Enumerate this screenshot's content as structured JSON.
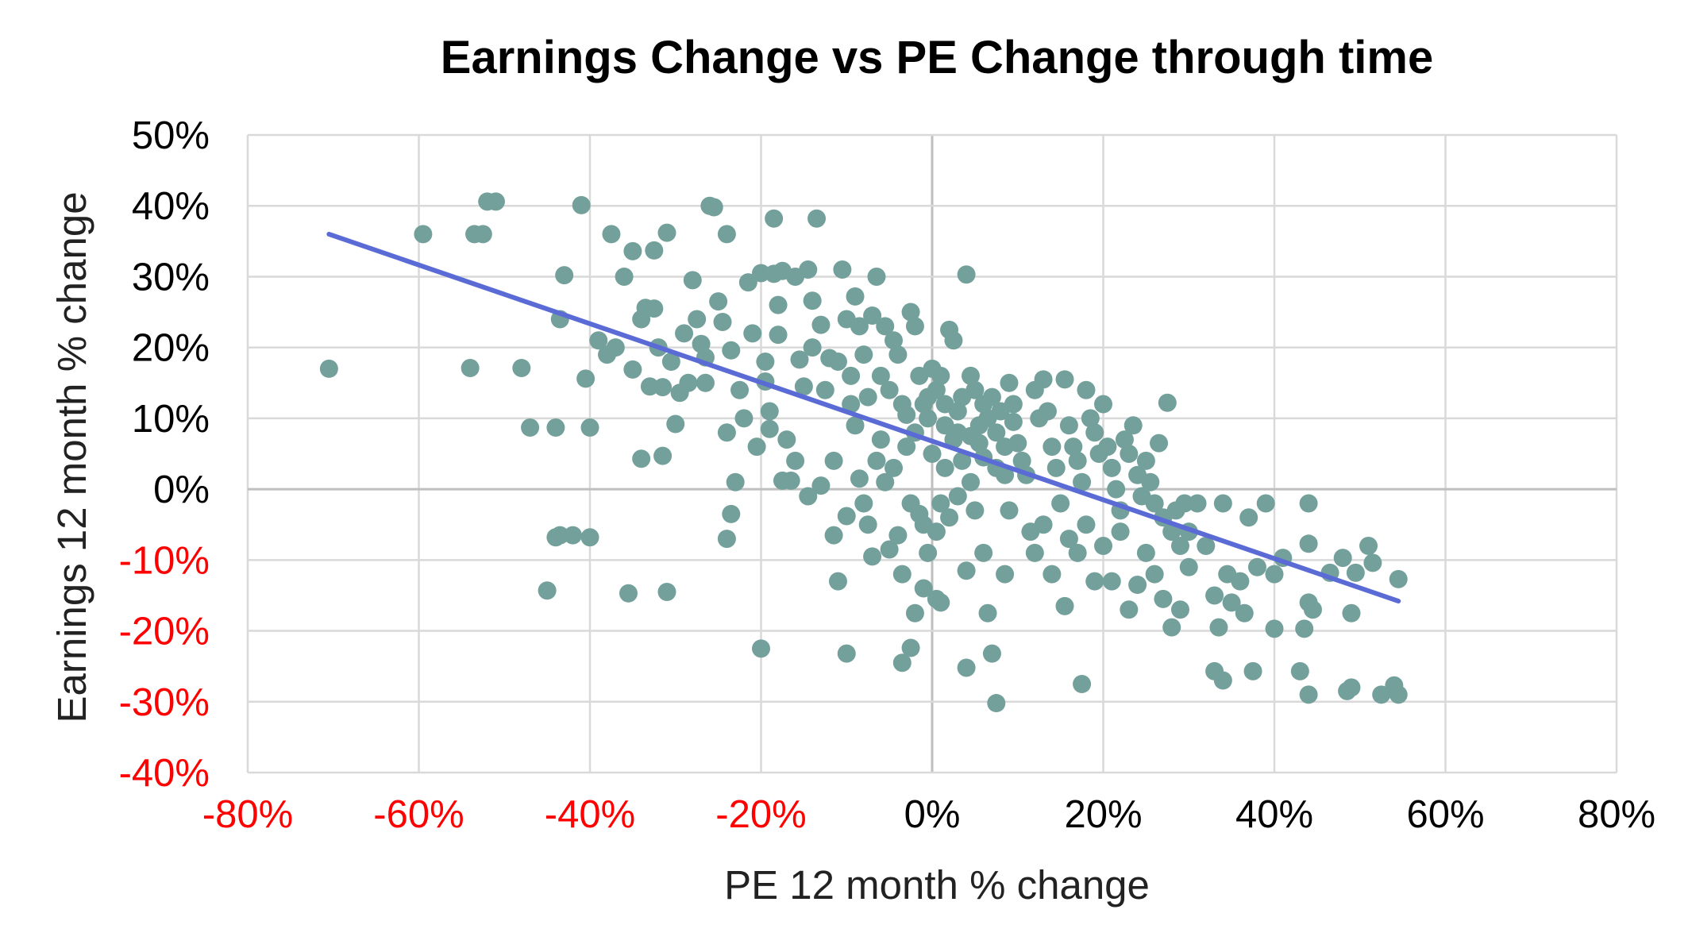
{
  "chart_data": {
    "type": "scatter",
    "title": "Earnings Change vs PE Change through time",
    "xlabel": "PE 12 month % change",
    "ylabel": "Earnings 12 month % change",
    "xlim": [
      -0.8,
      0.8
    ],
    "ylim": [
      -0.4,
      0.5
    ],
    "x_ticks": [
      -0.8,
      -0.6,
      -0.4,
      -0.2,
      0,
      0.2,
      0.4,
      0.6,
      0.8
    ],
    "y_ticks": [
      -0.4,
      -0.3,
      -0.2,
      -0.1,
      0,
      0.1,
      0.2,
      0.3,
      0.4,
      0.5
    ],
    "x_tick_labels": [
      "-80%",
      "-60%",
      "-40%",
      "-20%",
      "0%",
      "20%",
      "40%",
      "60%",
      "80%"
    ],
    "y_tick_labels": [
      "-40%",
      "-30%",
      "-20%",
      "-10%",
      "0%",
      "10%",
      "20%",
      "30%",
      "40%",
      "50%"
    ],
    "negative_tick_color": "#ff0000",
    "positive_tick_color": "#000000",
    "point_color": "#74a09c",
    "trend_color": "#5b6bd6",
    "grid": true,
    "legend": "none",
    "trendline": {
      "x": [
        -0.705,
        0.545
      ],
      "y": [
        0.36,
        -0.158
      ]
    },
    "series": [
      {
        "points": [
          [
            -0.705,
            0.17
          ],
          [
            -0.595,
            0.36
          ],
          [
            -0.54,
            0.171
          ],
          [
            -0.535,
            0.36
          ],
          [
            -0.525,
            0.36
          ],
          [
            -0.52,
            0.406
          ],
          [
            -0.51,
            0.406
          ],
          [
            -0.48,
            0.171
          ],
          [
            -0.47,
            0.087
          ],
          [
            -0.44,
            0.087
          ],
          [
            -0.44,
            -0.068
          ],
          [
            -0.45,
            -0.143
          ],
          [
            -0.435,
            -0.065
          ],
          [
            -0.435,
            0.24
          ],
          [
            -0.43,
            0.302
          ],
          [
            -0.42,
            -0.065
          ],
          [
            -0.405,
            0.156
          ],
          [
            -0.41,
            0.401
          ],
          [
            -0.4,
            0.087
          ],
          [
            -0.4,
            -0.068
          ],
          [
            -0.39,
            0.21
          ],
          [
            -0.38,
            0.19
          ],
          [
            -0.375,
            0.36
          ],
          [
            -0.37,
            0.2
          ],
          [
            -0.36,
            0.3
          ],
          [
            -0.355,
            -0.147
          ],
          [
            -0.35,
            0.336
          ],
          [
            -0.35,
            0.169
          ],
          [
            -0.34,
            0.24
          ],
          [
            -0.34,
            0.043
          ],
          [
            -0.335,
            0.256
          ],
          [
            -0.33,
            0.145
          ],
          [
            -0.325,
            0.255
          ],
          [
            -0.325,
            0.337
          ],
          [
            -0.32,
            0.2
          ],
          [
            -0.315,
            0.047
          ],
          [
            -0.315,
            0.144
          ],
          [
            -0.31,
            0.362
          ],
          [
            -0.31,
            -0.145
          ],
          [
            -0.305,
            0.18
          ],
          [
            -0.3,
            0.092
          ],
          [
            -0.295,
            0.136
          ],
          [
            -0.29,
            0.22
          ],
          [
            -0.285,
            0.15
          ],
          [
            -0.28,
            0.295
          ],
          [
            -0.275,
            0.24
          ],
          [
            -0.27,
            0.205
          ],
          [
            -0.265,
            0.186
          ],
          [
            -0.265,
            0.15
          ],
          [
            -0.26,
            0.4
          ],
          [
            -0.255,
            0.398
          ],
          [
            -0.25,
            0.265
          ],
          [
            -0.245,
            0.236
          ],
          [
            -0.24,
            0.36
          ],
          [
            -0.24,
            0.08
          ],
          [
            -0.235,
            0.196
          ],
          [
            -0.23,
            0.01
          ],
          [
            -0.225,
            0.14
          ],
          [
            -0.24,
            -0.07
          ],
          [
            -0.235,
            -0.035
          ],
          [
            -0.22,
            0.1
          ],
          [
            -0.215,
            0.292
          ],
          [
            -0.21,
            0.22
          ],
          [
            -0.205,
            0.06
          ],
          [
            -0.2,
            0.305
          ],
          [
            -0.195,
            0.18
          ],
          [
            -0.195,
            0.152
          ],
          [
            -0.19,
            0.11
          ],
          [
            -0.185,
            0.382
          ],
          [
            -0.185,
            0.304
          ],
          [
            -0.18,
            0.26
          ],
          [
            -0.18,
            0.218
          ],
          [
            -0.175,
            0.308
          ],
          [
            -0.17,
            0.07
          ],
          [
            -0.165,
            0.012
          ],
          [
            -0.16,
            0.3
          ],
          [
            -0.155,
            0.183
          ],
          [
            -0.15,
            0.145
          ],
          [
            -0.145,
            0.31
          ],
          [
            -0.14,
            0.266
          ],
          [
            -0.14,
            0.2
          ],
          [
            -0.135,
            0.382
          ],
          [
            -0.13,
            0.232
          ],
          [
            -0.125,
            0.14
          ],
          [
            -0.12,
            0.185
          ],
          [
            -0.115,
            0.04
          ],
          [
            -0.11,
            0.18
          ],
          [
            -0.105,
            0.31
          ],
          [
            -0.1,
            0.24
          ],
          [
            -0.095,
            0.16
          ],
          [
            -0.09,
            0.272
          ],
          [
            -0.085,
            0.23
          ],
          [
            -0.08,
            0.19
          ],
          [
            -0.075,
            0.13
          ],
          [
            -0.07,
            0.245
          ],
          [
            -0.065,
            0.3
          ],
          [
            -0.06,
            0.16
          ],
          [
            -0.055,
            0.23
          ],
          [
            -0.05,
            0.14
          ],
          [
            -0.045,
            0.21
          ],
          [
            -0.04,
            0.19
          ],
          [
            -0.035,
            0.12
          ],
          [
            -0.03,
            0.105
          ],
          [
            -0.025,
            0.25
          ],
          [
            -0.02,
            0.23
          ],
          [
            -0.015,
            0.16
          ],
          [
            -0.01,
            0.12
          ],
          [
            -0.005,
            0.13
          ],
          [
            0.0,
            0.17
          ],
          [
            0.005,
            0.14
          ],
          [
            0.01,
            0.16
          ],
          [
            0.015,
            0.12
          ],
          [
            0.02,
            0.225
          ],
          [
            0.025,
            0.21
          ],
          [
            0.03,
            0.11
          ],
          [
            0.035,
            0.13
          ],
          [
            0.04,
            0.303
          ],
          [
            0.045,
            0.16
          ],
          [
            0.05,
            0.14
          ],
          [
            0.055,
            0.09
          ],
          [
            0.06,
            0.12
          ],
          [
            0.065,
            0.1
          ],
          [
            0.07,
            0.13
          ],
          [
            0.075,
            0.08
          ],
          [
            0.08,
            0.11
          ],
          [
            0.085,
            0.06
          ],
          [
            0.09,
            0.15
          ],
          [
            0.095,
            0.12
          ],
          [
            -0.19,
            0.085
          ],
          [
            -0.175,
            0.012
          ],
          [
            -0.16,
            0.04
          ],
          [
            -0.145,
            -0.01
          ],
          [
            -0.13,
            0.005
          ],
          [
            -0.115,
            -0.065
          ],
          [
            -0.11,
            -0.13
          ],
          [
            -0.1,
            -0.038
          ],
          [
            -0.095,
            0.12
          ],
          [
            -0.09,
            0.09
          ],
          [
            -0.085,
            0.015
          ],
          [
            -0.08,
            -0.02
          ],
          [
            -0.075,
            -0.05
          ],
          [
            -0.07,
            -0.095
          ],
          [
            -0.065,
            0.04
          ],
          [
            -0.06,
            0.07
          ],
          [
            -0.055,
            0.01
          ],
          [
            -0.05,
            -0.085
          ],
          [
            -0.045,
            0.03
          ],
          [
            -0.04,
            -0.065
          ],
          [
            -0.035,
            -0.12
          ],
          [
            -0.03,
            0.06
          ],
          [
            -0.025,
            -0.02
          ],
          [
            -0.02,
            0.08
          ],
          [
            -0.015,
            -0.035
          ],
          [
            -0.01,
            -0.05
          ],
          [
            -0.005,
            -0.09
          ],
          [
            0.0,
            0.05
          ],
          [
            0.005,
            -0.06
          ],
          [
            0.01,
            -0.02
          ],
          [
            0.015,
            0.03
          ],
          [
            0.02,
            -0.04
          ],
          [
            0.025,
            0.07
          ],
          [
            0.03,
            -0.01
          ],
          [
            0.035,
            0.04
          ],
          [
            0.04,
            -0.115
          ],
          [
            0.045,
            0.01
          ],
          [
            0.05,
            -0.03
          ],
          [
            0.055,
            0.065
          ],
          [
            0.06,
            -0.09
          ],
          [
            -0.2,
            -0.225
          ],
          [
            -0.1,
            -0.232
          ],
          [
            -0.035,
            -0.245
          ],
          [
            -0.025,
            -0.224
          ],
          [
            -0.02,
            -0.175
          ],
          [
            -0.01,
            -0.14
          ],
          [
            0.005,
            -0.155
          ],
          [
            0.01,
            -0.16
          ],
          [
            0.04,
            -0.252
          ],
          [
            0.065,
            -0.175
          ],
          [
            0.07,
            -0.232
          ],
          [
            0.075,
            -0.302
          ],
          [
            0.085,
            -0.12
          ],
          [
            0.09,
            -0.03
          ],
          [
            0.095,
            0.095
          ],
          [
            0.1,
            0.065
          ],
          [
            0.105,
            0.04
          ],
          [
            0.11,
            0.02
          ],
          [
            0.115,
            -0.06
          ],
          [
            0.12,
            0.14
          ],
          [
            0.125,
            0.1
          ],
          [
            0.13,
            0.155
          ],
          [
            0.135,
            0.11
          ],
          [
            0.14,
            0.06
          ],
          [
            0.145,
            0.03
          ],
          [
            0.15,
            -0.02
          ],
          [
            0.155,
            0.155
          ],
          [
            0.16,
            0.09
          ],
          [
            0.165,
            0.06
          ],
          [
            0.17,
            0.04
          ],
          [
            0.175,
            0.01
          ],
          [
            0.18,
            0.14
          ],
          [
            0.185,
            0.1
          ],
          [
            0.19,
            0.08
          ],
          [
            0.195,
            0.05
          ],
          [
            0.2,
            0.12
          ],
          [
            0.205,
            0.06
          ],
          [
            0.21,
            0.03
          ],
          [
            0.215,
            0.0
          ],
          [
            0.22,
            -0.03
          ],
          [
            0.225,
            0.07
          ],
          [
            0.23,
            0.05
          ],
          [
            0.235,
            0.09
          ],
          [
            0.24,
            0.02
          ],
          [
            0.245,
            -0.01
          ],
          [
            0.25,
            0.04
          ],
          [
            0.255,
            0.01
          ],
          [
            0.26,
            -0.02
          ],
          [
            0.265,
            0.065
          ],
          [
            0.27,
            -0.04
          ],
          [
            0.275,
            0.122
          ],
          [
            0.28,
            -0.06
          ],
          [
            0.285,
            -0.03
          ],
          [
            0.29,
            -0.08
          ],
          [
            0.295,
            -0.02
          ],
          [
            0.3,
            -0.11
          ],
          [
            0.12,
            -0.09
          ],
          [
            0.13,
            -0.05
          ],
          [
            0.14,
            -0.12
          ],
          [
            0.155,
            -0.165
          ],
          [
            0.16,
            -0.07
          ],
          [
            0.17,
            -0.09
          ],
          [
            0.175,
            -0.275
          ],
          [
            0.18,
            -0.05
          ],
          [
            0.19,
            -0.13
          ],
          [
            0.2,
            -0.08
          ],
          [
            0.21,
            -0.13
          ],
          [
            0.22,
            -0.06
          ],
          [
            0.23,
            -0.17
          ],
          [
            0.24,
            -0.135
          ],
          [
            0.25,
            -0.09
          ],
          [
            0.26,
            -0.12
          ],
          [
            0.27,
            -0.155
          ],
          [
            0.28,
            -0.195
          ],
          [
            0.29,
            -0.17
          ],
          [
            0.3,
            -0.06
          ],
          [
            0.31,
            -0.02
          ],
          [
            0.32,
            -0.08
          ],
          [
            0.33,
            -0.15
          ],
          [
            0.335,
            -0.195
          ],
          [
            0.34,
            -0.02
          ],
          [
            0.345,
            -0.12
          ],
          [
            0.35,
            -0.16
          ],
          [
            0.33,
            -0.257
          ],
          [
            0.34,
            -0.27
          ],
          [
            0.36,
            -0.13
          ],
          [
            0.365,
            -0.175
          ],
          [
            0.37,
            -0.04
          ],
          [
            0.375,
            -0.257
          ],
          [
            0.38,
            -0.11
          ],
          [
            0.39,
            -0.02
          ],
          [
            0.4,
            -0.12
          ],
          [
            0.4,
            -0.197
          ],
          [
            0.41,
            -0.097
          ],
          [
            0.43,
            -0.257
          ],
          [
            0.435,
            -0.197
          ],
          [
            0.44,
            -0.02
          ],
          [
            0.44,
            -0.077
          ],
          [
            0.44,
            -0.16
          ],
          [
            0.44,
            -0.29
          ],
          [
            0.445,
            -0.17
          ],
          [
            0.465,
            -0.118
          ],
          [
            0.48,
            -0.097
          ],
          [
            0.485,
            -0.285
          ],
          [
            0.49,
            -0.175
          ],
          [
            0.49,
            -0.28
          ],
          [
            0.495,
            -0.118
          ],
          [
            0.51,
            -0.08
          ],
          [
            0.515,
            -0.104
          ],
          [
            0.525,
            -0.29
          ],
          [
            0.54,
            -0.277
          ],
          [
            0.545,
            -0.29
          ],
          [
            0.545,
            -0.127
          ],
          [
            -0.005,
            0.1
          ],
          [
            0.015,
            0.09
          ],
          [
            0.03,
            0.08
          ],
          [
            0.045,
            0.075
          ],
          [
            0.06,
            0.045
          ],
          [
            0.075,
            0.03
          ],
          [
            0.085,
            0.02
          ]
        ]
      }
    ]
  }
}
